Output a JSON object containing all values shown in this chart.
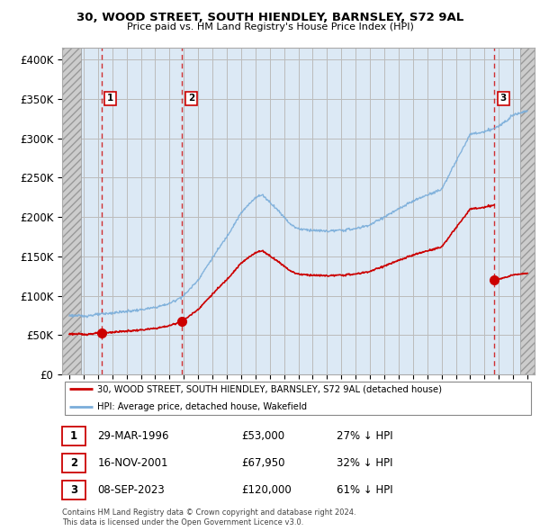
{
  "title": "30, WOOD STREET, SOUTH HIENDLEY, BARNSLEY, S72 9AL",
  "subtitle": "Price paid vs. HM Land Registry's House Price Index (HPI)",
  "ylabel_ticks": [
    "£0",
    "£50K",
    "£100K",
    "£150K",
    "£200K",
    "£250K",
    "£300K",
    "£350K",
    "£400K"
  ],
  "ytick_values": [
    0,
    50000,
    100000,
    150000,
    200000,
    250000,
    300000,
    350000,
    400000
  ],
  "ylim": [
    0,
    415000
  ],
  "xlim_start": 1993.5,
  "xlim_end": 2026.5,
  "transactions": [
    {
      "date_num": 1996.24,
      "price": 53000,
      "label": "1"
    },
    {
      "date_num": 2001.88,
      "price": 67950,
      "label": "2"
    },
    {
      "date_num": 2023.69,
      "price": 120000,
      "label": "3"
    }
  ],
  "transaction_color": "#cc0000",
  "hpi_color": "#7aadda",
  "legend_line1": "30, WOOD STREET, SOUTH HIENDLEY, BARNSLEY, S72 9AL (detached house)",
  "legend_line2": "HPI: Average price, detached house, Wakefield",
  "table_rows": [
    {
      "num": "1",
      "date": "29-MAR-1996",
      "price": "£53,000",
      "pct": "27% ↓ HPI"
    },
    {
      "num": "2",
      "date": "16-NOV-2001",
      "price": "£67,950",
      "pct": "32% ↓ HPI"
    },
    {
      "num": "3",
      "date": "08-SEP-2023",
      "price": "£120,000",
      "pct": "61% ↓ HPI"
    }
  ],
  "footer": "Contains HM Land Registry data © Crown copyright and database right 2024.\nThis data is licensed under the Open Government Licence v3.0.",
  "grid_color": "#bbbbbb",
  "bg_color": "#dce9f5",
  "hatch_bg": "#d0d0d0"
}
